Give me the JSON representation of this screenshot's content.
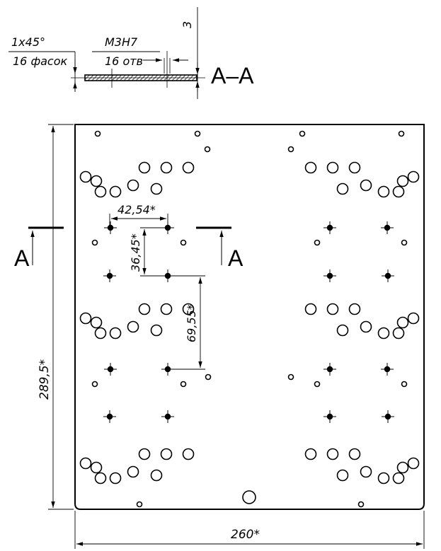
{
  "section_view": {
    "chamfer_spec": "1x45°",
    "chamfer_count": "16 фасок",
    "thread_spec": "M3H7",
    "hole_count": "16 отв",
    "thickness": "3",
    "section_label": "A–A"
  },
  "plan_view": {
    "cut_mark_left": "A",
    "cut_mark_right": "A",
    "dim_hole_spacing_x": "42,54*",
    "dim_hole_spacing_y_small": "36,45*",
    "dim_hole_spacing_y_large": "69,55*",
    "dim_height": "289,5*",
    "dim_width": "260*"
  },
  "colors": {
    "line": "#000000",
    "paper": "#ffffff"
  }
}
